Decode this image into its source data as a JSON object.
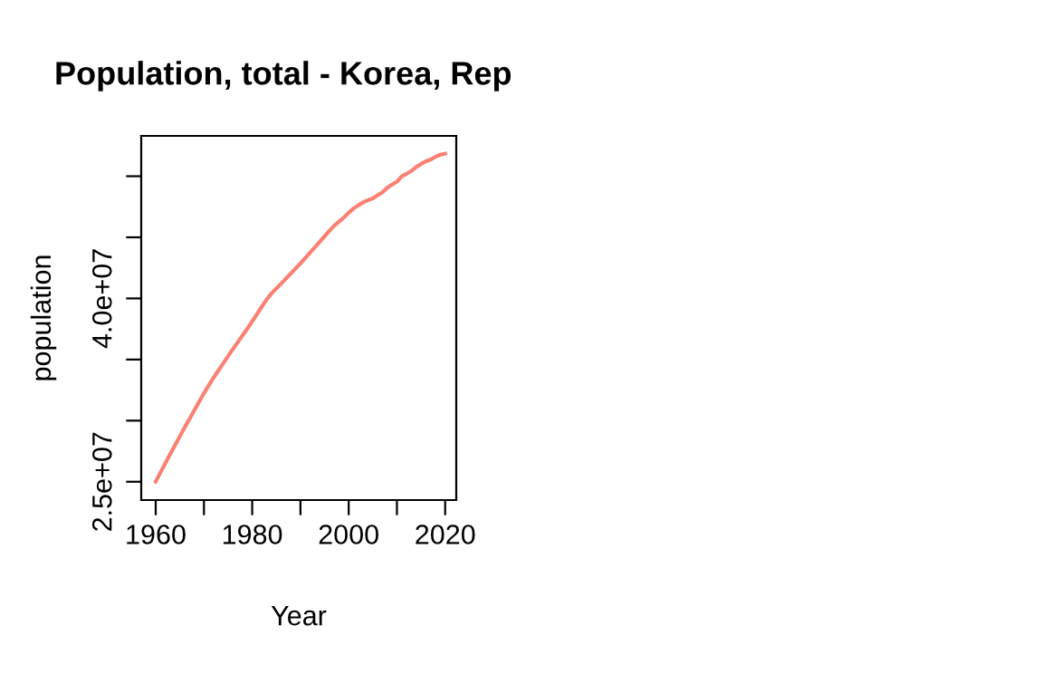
{
  "chart_data": {
    "type": "line",
    "title": "Population, total - Korea, Rep",
    "xlabel": "Year",
    "ylabel": "population",
    "x": [
      1960,
      1961,
      1962,
      1963,
      1964,
      1965,
      1966,
      1967,
      1968,
      1969,
      1970,
      1971,
      1972,
      1973,
      1974,
      1975,
      1976,
      1977,
      1978,
      1979,
      1980,
      1981,
      1982,
      1983,
      1984,
      1985,
      1986,
      1987,
      1988,
      1989,
      1990,
      1991,
      1992,
      1993,
      1994,
      1995,
      1996,
      1997,
      1998,
      1999,
      2000,
      2001,
      2002,
      2003,
      2004,
      2005,
      2006,
      2007,
      2008,
      2009,
      2010,
      2011,
      2012,
      2013,
      2014,
      2015,
      2016,
      2017,
      2018,
      2019,
      2020
    ],
    "series": [
      {
        "color": "#fa8072",
        "values": [
          25010000,
          25770000,
          26510000,
          27260000,
          27980000,
          28700000,
          29440000,
          30130000,
          30840000,
          31540000,
          32240000,
          32880000,
          33510000,
          34100000,
          34690000,
          35280000,
          35850000,
          36410000,
          36970000,
          37530000,
          38120000,
          38720000,
          39330000,
          39910000,
          40410000,
          40810000,
          41210000,
          41620000,
          42030000,
          42450000,
          42870000,
          43300000,
          43750000,
          44190000,
          44640000,
          45090000,
          45530000,
          45950000,
          46290000,
          46620000,
          47010000,
          47360000,
          47620000,
          47860000,
          48040000,
          48180000,
          48440000,
          48680000,
          49050000,
          49310000,
          49550000,
          50000000,
          50200000,
          50430000,
          50750000,
          51010000,
          51220000,
          51360000,
          51590000,
          51760000,
          51840000
        ]
      }
    ],
    "xlim": [
      1957,
      2022.3
    ],
    "xticks": [
      1960,
      {
        "value": 1970,
        "label": null
      },
      1980,
      {
        "value": 1990,
        "label": null
      },
      2000,
      {
        "value": 2010,
        "label": null
      },
      2020
    ],
    "ylim": [
      23500000,
      53300000
    ],
    "yticks": [
      {
        "value": 25000000,
        "label": "2.5e+07"
      },
      {
        "value": 30000000,
        "label": null
      },
      {
        "value": 35000000,
        "label": null
      },
      {
        "value": 40000000,
        "label": "4.0e+07"
      },
      {
        "value": 45000000,
        "label": null
      },
      {
        "value": 50000000,
        "label": null
      }
    ],
    "grid": false,
    "legend": false,
    "marker": "none",
    "line_style": "solid"
  }
}
